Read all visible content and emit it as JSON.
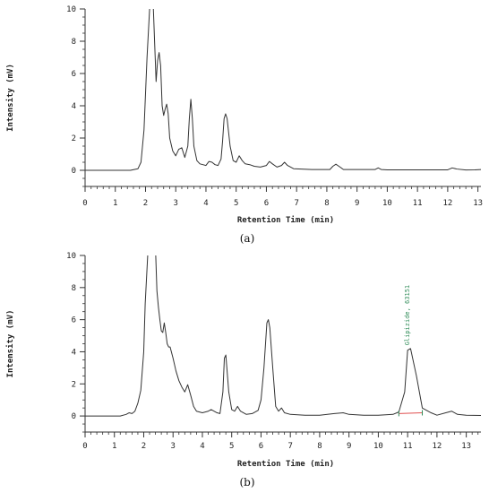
{
  "figure": {
    "captions": [
      "(a)",
      "(b)"
    ]
  },
  "chart_data": [
    {
      "type": "line",
      "panel": "(a)",
      "xlabel": "Retention Time (min)",
      "ylabel": "Intensity (mV)",
      "xlim": [
        0,
        13.1
      ],
      "ylim": [
        -1,
        10
      ],
      "x_ticks": [
        0,
        1,
        2,
        3,
        4,
        5,
        6,
        7,
        8,
        9,
        10,
        11,
        12,
        13
      ],
      "y_ticks": [
        0,
        2,
        4,
        6,
        8,
        10
      ],
      "grid": false,
      "line_color": "#333333",
      "series": [
        {
          "x": [
            0,
            1.5,
            1.75,
            1.85,
            1.95,
            2.05,
            2.15,
            2.2,
            2.25,
            2.3,
            2.35,
            2.4,
            2.45,
            2.5,
            2.55,
            2.6,
            2.65,
            2.7,
            2.75,
            2.8,
            2.9,
            3.0,
            3.1,
            3.2,
            3.3,
            3.4,
            3.45,
            3.5,
            3.55,
            3.6,
            3.7,
            3.8,
            3.9,
            4.0,
            4.1,
            4.2,
            4.3,
            4.4,
            4.5,
            4.55,
            4.6,
            4.65,
            4.7,
            4.8,
            4.9,
            5.0,
            5.1,
            5.2,
            5.3,
            5.45,
            5.6,
            5.8,
            6.0,
            6.1,
            6.2,
            6.35,
            6.5,
            6.6,
            6.7,
            6.9,
            7.5,
            8.1,
            8.2,
            8.3,
            8.4,
            8.55,
            9.0,
            9.6,
            9.7,
            9.8,
            10.0,
            10.5,
            11.0,
            11.5,
            12.0,
            12.15,
            12.3,
            12.6,
            12.9,
            13.1
          ],
          "y": [
            0,
            0,
            0.1,
            0.5,
            2.5,
            7.0,
            10.5,
            10.8,
            10.5,
            8.0,
            5.5,
            6.8,
            7.3,
            6.5,
            4.0,
            3.4,
            3.8,
            4.1,
            3.5,
            2.0,
            1.2,
            0.9,
            1.3,
            1.4,
            0.8,
            1.5,
            3.2,
            4.4,
            3.2,
            1.5,
            0.6,
            0.4,
            0.35,
            0.3,
            0.55,
            0.5,
            0.35,
            0.3,
            0.7,
            1.8,
            3.2,
            3.5,
            3.2,
            1.5,
            0.6,
            0.5,
            0.9,
            0.6,
            0.4,
            0.35,
            0.25,
            0.2,
            0.3,
            0.55,
            0.4,
            0.2,
            0.3,
            0.5,
            0.3,
            0.1,
            0.05,
            0.05,
            0.25,
            0.38,
            0.25,
            0.05,
            0.05,
            0.05,
            0.15,
            0.05,
            0.03,
            0.03,
            0.03,
            0.03,
            0.03,
            0.15,
            0.08,
            0.02,
            0.03,
            0.05
          ]
        }
      ]
    },
    {
      "type": "line",
      "panel": "(b)",
      "xlabel": "Retention Time (min)",
      "ylabel": "Intensity (mV)",
      "xlim": [
        0,
        13.5
      ],
      "ylim": [
        -1,
        10
      ],
      "x_ticks": [
        0,
        1,
        2,
        3,
        4,
        5,
        6,
        7,
        8,
        9,
        10,
        11,
        12,
        13
      ],
      "y_ticks": [
        0,
        2,
        4,
        6,
        8,
        10
      ],
      "grid": false,
      "line_color": "#333333",
      "series": [
        {
          "x": [
            0,
            1.2,
            1.4,
            1.5,
            1.6,
            1.7,
            1.8,
            1.9,
            2.0,
            2.05,
            2.15,
            2.3,
            2.4,
            2.45,
            2.5,
            2.55,
            2.6,
            2.65,
            2.7,
            2.75,
            2.8,
            2.85,
            2.9,
            3.0,
            3.1,
            3.2,
            3.3,
            3.4,
            3.5,
            3.6,
            3.7,
            3.8,
            4.0,
            4.2,
            4.3,
            4.5,
            4.6,
            4.7,
            4.75,
            4.8,
            4.9,
            5.0,
            5.1,
            5.2,
            5.3,
            5.5,
            5.7,
            5.9,
            6.0,
            6.1,
            6.2,
            6.25,
            6.3,
            6.4,
            6.5,
            6.6,
            6.7,
            6.8,
            7.0,
            7.5,
            8.0,
            8.5,
            8.8,
            9.0,
            9.5,
            10.0,
            10.5,
            10.7,
            10.9,
            11.0,
            11.1,
            11.3,
            11.5,
            11.8,
            12.0,
            12.3,
            12.5,
            12.7,
            13.0,
            13.5
          ],
          "y": [
            0,
            0,
            0.1,
            0.2,
            0.15,
            0.3,
            0.8,
            1.6,
            4.0,
            7.0,
            10.5,
            10.8,
            10.5,
            7.8,
            6.8,
            6.0,
            5.3,
            5.2,
            5.8,
            5.2,
            4.5,
            4.3,
            4.3,
            3.6,
            2.8,
            2.2,
            1.8,
            1.5,
            1.95,
            1.3,
            0.6,
            0.3,
            0.2,
            0.3,
            0.4,
            0.2,
            0.15,
            1.5,
            3.6,
            3.8,
            1.5,
            0.4,
            0.3,
            0.6,
            0.3,
            0.1,
            0.15,
            0.35,
            1.0,
            3.0,
            5.8,
            6.0,
            5.5,
            3.0,
            0.6,
            0.3,
            0.5,
            0.2,
            0.1,
            0.05,
            0.05,
            0.15,
            0.2,
            0.1,
            0.05,
            0.05,
            0.1,
            0.25,
            1.5,
            4.1,
            4.2,
            2.5,
            0.5,
            0.2,
            0.05,
            0.2,
            0.3,
            0.1,
            0.05,
            0.03
          ]
        }
      ],
      "annotations": [
        {
          "text": "Glipizide, 63151",
          "x": 11.0,
          "color": "#2e8b57"
        }
      ],
      "baseline": {
        "x": [
          10.7,
          11.5
        ],
        "y": [
          0.15,
          0.2
        ],
        "color": "#e05050"
      }
    }
  ]
}
